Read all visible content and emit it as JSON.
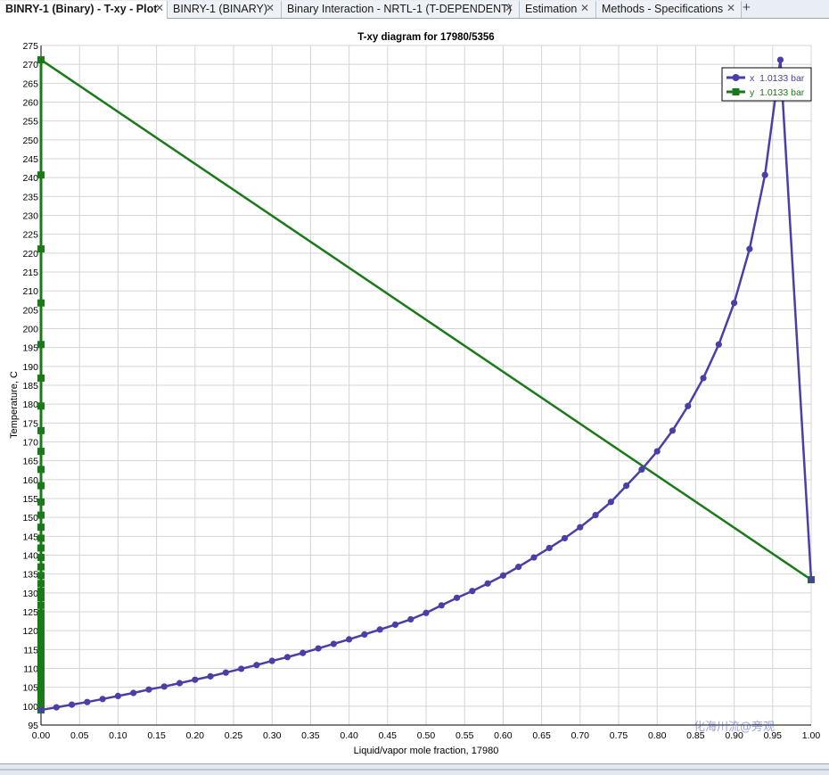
{
  "tabs": [
    {
      "label": "BINRY-1 (Binary) - T-xy - Plot",
      "active": true
    },
    {
      "label": "BINRY-1 (BINARY)",
      "active": false
    },
    {
      "label": "Binary Interaction - NRTL-1 (T-DEPENDENT)",
      "active": false
    },
    {
      "label": "Estimation",
      "active": false
    },
    {
      "label": "Methods - Specifications",
      "active": false
    }
  ],
  "icons": {
    "close": "close-icon",
    "add": "plus-icon"
  },
  "watermark": "化海川流@旁观",
  "chart_data": {
    "type": "line",
    "title": "T-xy diagram for 17980/5356",
    "xlabel": "Liquid/vapor mole fraction, 17980",
    "ylabel": "Temperature, C",
    "xlim": [
      0,
      1
    ],
    "ylim": [
      95,
      275
    ],
    "x_ticks": [
      "0.00",
      "0.05",
      "0.10",
      "0.15",
      "0.20",
      "0.25",
      "0.30",
      "0.35",
      "0.40",
      "0.45",
      "0.50",
      "0.55",
      "0.60",
      "0.65",
      "0.70",
      "0.75",
      "0.80",
      "0.85",
      "0.90",
      "0.95",
      "1.00"
    ],
    "y_ticks": [
      "95",
      "100",
      "105",
      "110",
      "115",
      "120",
      "125",
      "130",
      "135",
      "140",
      "145",
      "150",
      "155",
      "160",
      "165",
      "170",
      "175",
      "180",
      "185",
      "190",
      "195",
      "200",
      "205",
      "210",
      "215",
      "220",
      "225",
      "230",
      "235",
      "240",
      "245",
      "250",
      "255",
      "260",
      "265",
      "270",
      "275"
    ],
    "grid": true,
    "legend_position": "top-right",
    "series": [
      {
        "name": "x  1.0133 bar",
        "color": "#4a3fa6",
        "marker": "circle",
        "x": [
          0.0,
          0.02,
          0.04,
          0.06,
          0.08,
          0.1,
          0.12,
          0.14,
          0.16,
          0.18,
          0.2,
          0.22,
          0.24,
          0.26,
          0.28,
          0.3,
          0.32,
          0.34,
          0.36,
          0.38,
          0.4,
          0.42,
          0.44,
          0.46,
          0.48,
          0.5,
          0.52,
          0.54,
          0.56,
          0.58,
          0.6,
          0.62,
          0.64,
          0.66,
          0.68,
          0.7,
          0.72,
          0.74,
          0.76,
          0.78,
          0.8,
          0.82,
          0.84,
          0.86,
          0.88,
          0.9,
          0.92,
          0.94,
          0.96,
          1.0
        ],
        "y": [
          99.0,
          99.7,
          100.4,
          101.1,
          101.9,
          102.7,
          103.5,
          104.4,
          105.2,
          106.1,
          107.0,
          107.9,
          108.9,
          109.9,
          110.9,
          112.0,
          113.0,
          114.1,
          115.3,
          116.5,
          117.7,
          119.0,
          120.3,
          121.6,
          123.0,
          124.7,
          126.7,
          128.7,
          130.5,
          132.5,
          134.6,
          136.9,
          139.4,
          141.9,
          144.5,
          147.4,
          150.6,
          154.1,
          158.4,
          162.7,
          167.5,
          173.0,
          179.5,
          186.9,
          195.8,
          206.8,
          221.1,
          240.7,
          271.2,
          133.5
        ]
      },
      {
        "name": "y  1.0133 bar",
        "color": "#1a7a1a",
        "marker": "square",
        "x": [
          1.0,
          0.0
        ],
        "y": [
          133.5,
          271.2
        ],
        "x_markers": [
          0,
          0,
          0,
          0,
          0,
          0,
          0,
          0,
          0,
          0,
          0,
          0,
          0,
          0,
          0,
          0,
          0,
          0,
          0,
          0,
          0,
          0,
          0,
          0,
          0,
          0,
          0,
          0,
          0,
          0,
          0,
          0,
          0,
          0,
          0,
          0,
          0,
          0,
          0,
          0,
          0,
          0,
          0,
          0,
          0,
          0,
          0,
          0,
          0,
          1.0
        ],
        "y_markers": [
          99.0,
          99.7,
          100.4,
          101.1,
          101.9,
          102.7,
          103.5,
          104.4,
          105.2,
          106.1,
          107.0,
          107.9,
          108.9,
          109.9,
          110.9,
          112.0,
          113.0,
          114.1,
          115.3,
          116.5,
          117.7,
          119.0,
          120.3,
          121.6,
          123.0,
          124.7,
          126.7,
          128.7,
          130.5,
          132.5,
          134.6,
          136.9,
          139.4,
          141.9,
          144.5,
          147.4,
          150.6,
          154.1,
          158.4,
          162.7,
          167.5,
          173.0,
          179.5,
          186.9,
          195.8,
          206.8,
          221.1,
          240.7,
          271.2,
          133.5
        ]
      }
    ]
  }
}
